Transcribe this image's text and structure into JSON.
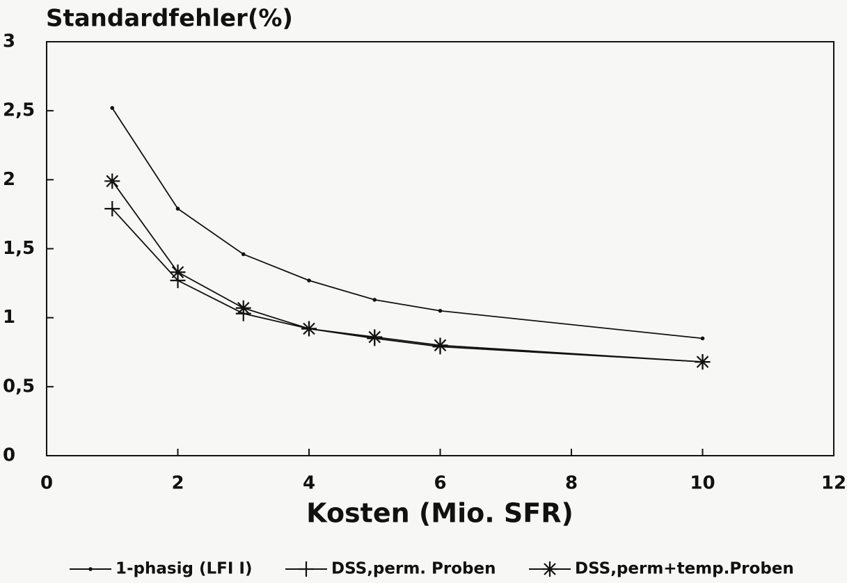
{
  "chart_data": {
    "type": "line",
    "title": "Standardfehler(%)",
    "x_label": "Kosten (Mio. SFR)",
    "x": [
      1,
      2,
      3,
      4,
      5,
      6,
      10
    ],
    "series": [
      {
        "name": "1-phasig (LFI I)",
        "color": "#111111",
        "marker": "dot",
        "values": [
          2.52,
          1.79,
          1.46,
          1.27,
          1.13,
          1.05,
          0.85
        ]
      },
      {
        "name": "DSS,perm. Proben",
        "color": "#111111",
        "marker": "plus",
        "values": [
          1.79,
          1.27,
          1.03,
          0.92,
          0.85,
          0.79,
          0.68
        ]
      },
      {
        "name": "DSS,perm+temp.Proben",
        "color": "#111111",
        "marker": "star",
        "values": [
          1.99,
          1.33,
          1.07,
          0.92,
          0.86,
          0.8,
          0.68
        ]
      }
    ],
    "xlim": [
      0,
      12
    ],
    "xticks": [
      0,
      2,
      4,
      6,
      8,
      10,
      12
    ],
    "ylim": [
      0,
      3
    ],
    "yticks": [
      0,
      {
        "value": 0.5,
        "label": "0,5"
      },
      1,
      {
        "value": 1.5,
        "label": "1,5"
      },
      2,
      {
        "value": 2.5,
        "label": "2,5"
      },
      3
    ],
    "grid": false,
    "legend": "bottom"
  }
}
